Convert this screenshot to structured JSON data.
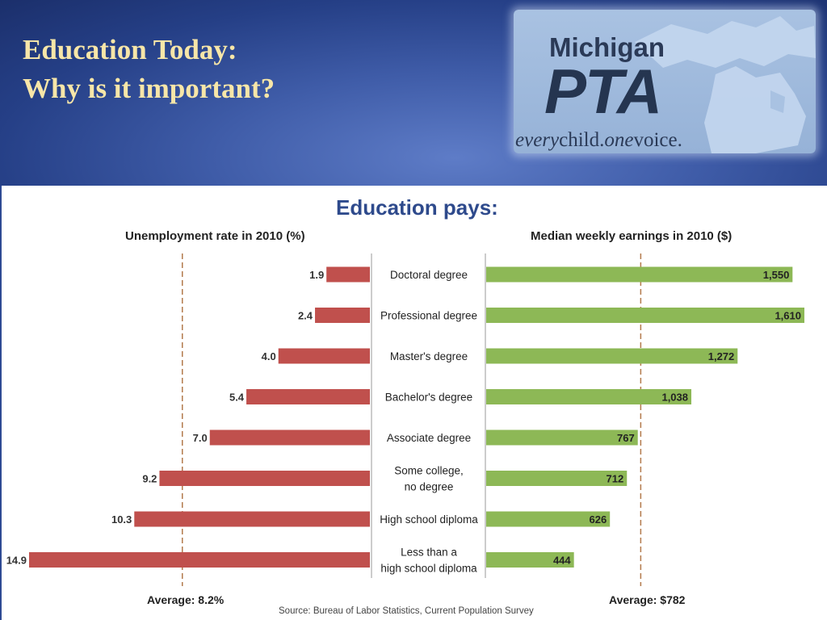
{
  "slide": {
    "title_line1": "Education Today:",
    "title_line2": "Why is it important?"
  },
  "logo": {
    "name": "Michigan",
    "brand": "PTA",
    "tagline_every": "every",
    "tagline_child": "child.",
    "tagline_one": "one",
    "tagline_voice": "voice."
  },
  "colors": {
    "title_text": "#f7e6a8",
    "unemployment_bar": "#c0504d",
    "earnings_bar": "#8db856",
    "average_line": "#b37a4c",
    "chart_title": "#2e4a8c"
  },
  "chart_data": {
    "type": "bar",
    "title": "Education pays:",
    "source": "Source: Bureau of Labor Statistics, Current Population Survey",
    "categories": [
      [
        "Doctoral degree"
      ],
      [
        "Professional degree"
      ],
      [
        "Master's degree"
      ],
      [
        "Bachelor's degree"
      ],
      [
        "Associate degree"
      ],
      [
        "Some college,",
        "no degree"
      ],
      [
        "High school diploma"
      ],
      [
        "Less than a",
        "high school diploma"
      ]
    ],
    "series": [
      {
        "name": "Unemployment rate in 2010 (%)",
        "values": [
          1.9,
          2.4,
          4.0,
          5.4,
          7.0,
          9.2,
          10.3,
          14.9
        ],
        "labels": [
          "1.9",
          "2.4",
          "4.0",
          "5.4",
          "7.0",
          "9.2",
          "10.3",
          "14.9"
        ],
        "average": 8.2,
        "average_label": "Average: 8.2%",
        "xlim": [
          0,
          14.9
        ],
        "direction": "left"
      },
      {
        "name": "Median weekly earnings in 2010 ($)",
        "values": [
          1550,
          1610,
          1272,
          1038,
          767,
          712,
          626,
          444
        ],
        "labels": [
          "1,550",
          "1,610",
          "1,272",
          "1,038",
          "767",
          "712",
          "626",
          "444"
        ],
        "average": 782,
        "average_label": "Average: $782",
        "xlim": [
          0,
          1610
        ],
        "direction": "right"
      }
    ],
    "grid": false,
    "legend": "none"
  }
}
